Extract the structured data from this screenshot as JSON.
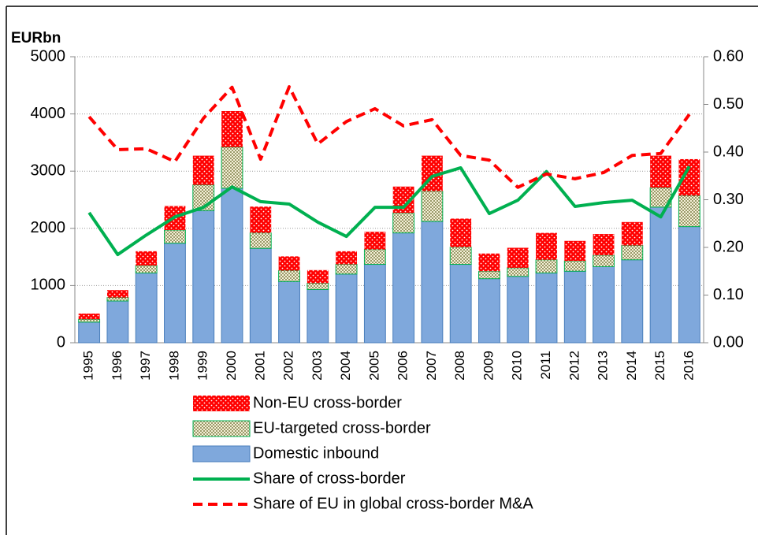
{
  "chart_data": {
    "type": "bar",
    "y_label": "EURbn",
    "categories": [
      "1995",
      "1996",
      "1997",
      "1998",
      "1999",
      "2000",
      "2001",
      "2002",
      "2003",
      "2004",
      "2005",
      "2006",
      "2007",
      "2008",
      "2009",
      "2010",
      "2011",
      "2012",
      "2013",
      "2014",
      "2015",
      "2016"
    ],
    "ylim": [
      0,
      5000
    ],
    "yticks": [
      0,
      1000,
      2000,
      3000,
      4000,
      5000
    ],
    "y2lim": [
      0,
      0.6
    ],
    "y2ticks": [
      {
        "value": 0,
        "label": "0.00"
      },
      {
        "value": 0.1,
        "label": "0.10"
      },
      {
        "value": 0.2,
        "label": "0.20"
      },
      {
        "value": 0.3,
        "label": "0.30"
      },
      {
        "value": 0.4,
        "label": "0.40"
      },
      {
        "value": 0.5,
        "label": "0.50"
      },
      {
        "value": 0.6,
        "label": "0.60"
      }
    ],
    "grid": true,
    "stacked": true,
    "series": [
      {
        "name": "Non-EU cross-border",
        "type": "bar",
        "color": "#ff0000",
        "pattern": "dots",
        "stack_order": 2,
        "values": [
          100,
          130,
          250,
          420,
          510,
          630,
          460,
          250,
          230,
          230,
          310,
          460,
          620,
          500,
          310,
          350,
          470,
          350,
          370,
          410,
          560,
          640
        ]
      },
      {
        "name": "EU-targeted cross-border",
        "type": "bar",
        "color": "#00b050",
        "pattern": "checker",
        "stack_order": 1,
        "values": [
          50,
          60,
          130,
          230,
          450,
          720,
          270,
          190,
          110,
          170,
          260,
          350,
          530,
          300,
          130,
          150,
          230,
          180,
          200,
          250,
          340,
          540
        ]
      },
      {
        "name": "Domestic inbound",
        "type": "bar",
        "color": "#7fa8dc",
        "pattern": "solid",
        "stack_order": 0,
        "values": [
          360,
          730,
          1220,
          1740,
          2310,
          2700,
          1650,
          1070,
          930,
          1200,
          1370,
          1920,
          2120,
          1370,
          1120,
          1160,
          1220,
          1250,
          1330,
          1450,
          2370,
          2030
        ]
      },
      {
        "name": "Share of cross-border",
        "type": "line",
        "axis": "y2",
        "color": "#00b050",
        "dashed": false,
        "values": [
          0.273,
          0.185,
          0.226,
          0.264,
          0.284,
          0.327,
          0.296,
          0.291,
          0.253,
          0.223,
          0.284,
          0.284,
          0.349,
          0.367,
          0.271,
          0.299,
          0.359,
          0.286,
          0.294,
          0.299,
          0.264,
          0.37
        ]
      },
      {
        "name": "Share of EU in global cross-border M&A",
        "type": "line",
        "axis": "y2",
        "color": "#ff0000",
        "dashed": true,
        "values": [
          0.474,
          0.405,
          0.407,
          0.38,
          0.471,
          0.536,
          0.385,
          0.537,
          0.417,
          0.464,
          0.491,
          0.455,
          0.468,
          0.393,
          0.383,
          0.326,
          0.354,
          0.344,
          0.357,
          0.393,
          0.397,
          0.479
        ]
      }
    ]
  }
}
